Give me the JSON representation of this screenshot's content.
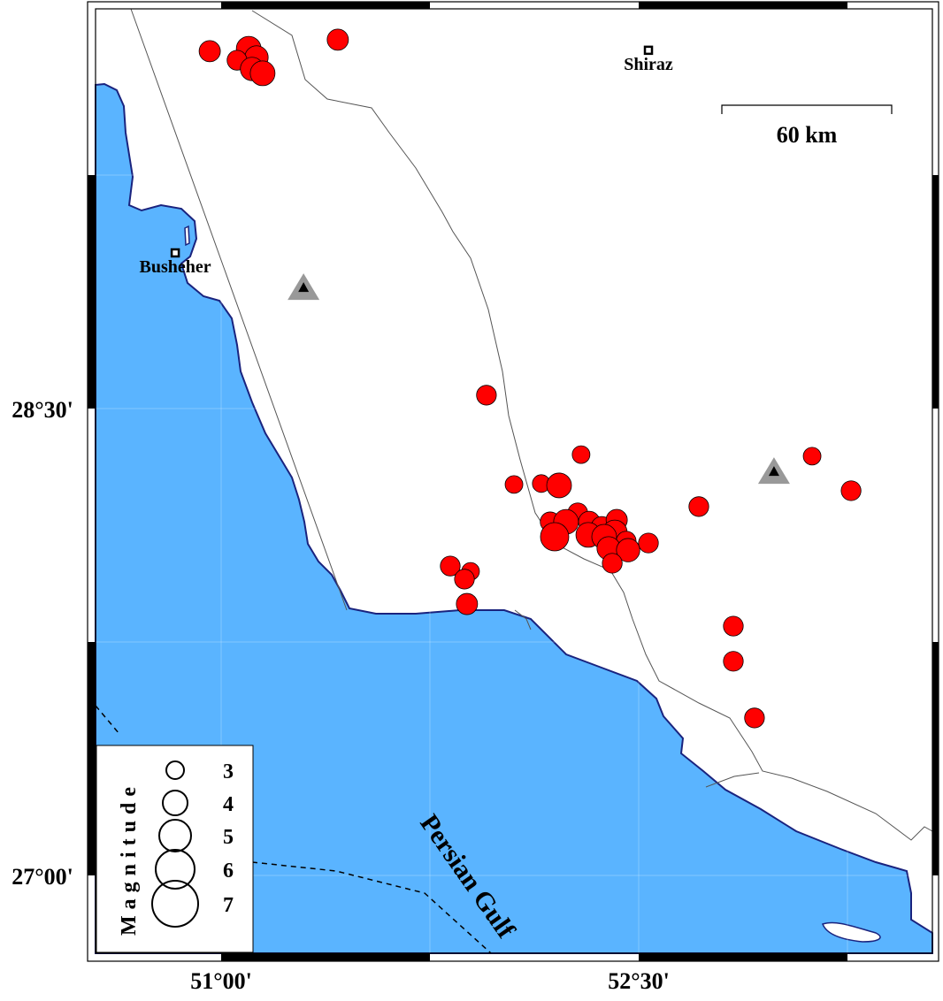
{
  "map": {
    "extent": {
      "lon": [
        50.54,
        53.55
      ],
      "lat": [
        26.74,
        29.77
      ]
    },
    "sea_color": "#5ab4ff",
    "coast_color": "#1a237e",
    "event_color": "#ff0000",
    "station_color": "#999999"
  },
  "axes": {
    "x_ticks": [
      {
        "lon": 51.0,
        "label": "51°00'"
      },
      {
        "lon": 52.5,
        "label": "52°30'"
      }
    ],
    "y_ticks": [
      {
        "lat": 28.5,
        "label": "28°30'"
      },
      {
        "lat": 27.0,
        "label": "27°00'"
      }
    ]
  },
  "cities": [
    {
      "name": "Shiraz",
      "lon": 52.535,
      "lat": 29.651
    },
    {
      "name": "Busheher",
      "lon": 50.835,
      "lat": 29.0
    }
  ],
  "stations": [
    {
      "lon": 51.296,
      "lat": 28.889,
      "icon": "triangle-icon"
    },
    {
      "lon": 52.986,
      "lat": 28.298,
      "icon": "triangle-icon"
    }
  ],
  "sea_label": "Persian Gulf",
  "scale_bar": {
    "label": "60 km",
    "km": 60
  },
  "legend": {
    "title": "Magnitude",
    "magnitudes": [
      3,
      4,
      5,
      6,
      7
    ],
    "labels": [
      "3",
      "4",
      "5",
      "6",
      "7"
    ]
  },
  "events": [
    {
      "lon": 50.959,
      "lat": 29.648,
      "mag": 3.5
    },
    {
      "lon": 51.099,
      "lat": 29.656,
      "mag": 4.0
    },
    {
      "lon": 51.127,
      "lat": 29.628,
      "mag": 3.8
    },
    {
      "lon": 51.057,
      "lat": 29.619,
      "mag": 3.3
    },
    {
      "lon": 51.111,
      "lat": 29.591,
      "mag": 3.8
    },
    {
      "lon": 51.149,
      "lat": 29.577,
      "mag": 4.0
    },
    {
      "lon": 51.419,
      "lat": 29.685,
      "mag": 3.5
    },
    {
      "lon": 51.953,
      "lat": 28.543,
      "mag": 3.3
    },
    {
      "lon": 52.293,
      "lat": 28.352,
      "mag": 3.0
    },
    {
      "lon": 52.052,
      "lat": 28.256,
      "mag": 3.0
    },
    {
      "lon": 52.15,
      "lat": 28.259,
      "mag": 3.0
    },
    {
      "lon": 52.214,
      "lat": 28.253,
      "mag": 4.0
    },
    {
      "lon": 52.182,
      "lat": 28.136,
      "mag": 3.3
    },
    {
      "lon": 52.281,
      "lat": 28.165,
      "mag": 3.3
    },
    {
      "lon": 52.239,
      "lat": 28.136,
      "mag": 4.0
    },
    {
      "lon": 52.198,
      "lat": 28.088,
      "mag": 4.5
    },
    {
      "lon": 52.322,
      "lat": 28.136,
      "mag": 3.5
    },
    {
      "lon": 52.367,
      "lat": 28.119,
      "mag": 3.5
    },
    {
      "lon": 52.421,
      "lat": 28.142,
      "mag": 3.5
    },
    {
      "lon": 52.414,
      "lat": 28.102,
      "mag": 4.0
    },
    {
      "lon": 52.455,
      "lat": 28.074,
      "mag": 3.3
    },
    {
      "lon": 52.319,
      "lat": 28.094,
      "mag": 4.0
    },
    {
      "lon": 52.376,
      "lat": 28.088,
      "mag": 4.0
    },
    {
      "lon": 52.392,
      "lat": 28.051,
      "mag": 3.8
    },
    {
      "lon": 52.462,
      "lat": 28.045,
      "mag": 3.8
    },
    {
      "lon": 52.405,
      "lat": 28.003,
      "mag": 3.3
    },
    {
      "lon": 52.535,
      "lat": 28.068,
      "mag": 3.3
    },
    {
      "lon": 52.716,
      "lat": 28.185,
      "mag": 3.3
    },
    {
      "lon": 53.123,
      "lat": 28.347,
      "mag": 3.0
    },
    {
      "lon": 53.263,
      "lat": 28.236,
      "mag": 3.3
    },
    {
      "lon": 51.823,
      "lat": 27.994,
      "mag": 3.3
    },
    {
      "lon": 51.896,
      "lat": 27.977,
      "mag": 3.0
    },
    {
      "lon": 51.874,
      "lat": 27.952,
      "mag": 3.3
    },
    {
      "lon": 51.883,
      "lat": 27.872,
      "mag": 3.5
    },
    {
      "lon": 52.84,
      "lat": 27.801,
      "mag": 3.3
    },
    {
      "lon": 52.84,
      "lat": 27.688,
      "mag": 3.3
    },
    {
      "lon": 52.916,
      "lat": 27.506,
      "mag": 3.3
    }
  ]
}
